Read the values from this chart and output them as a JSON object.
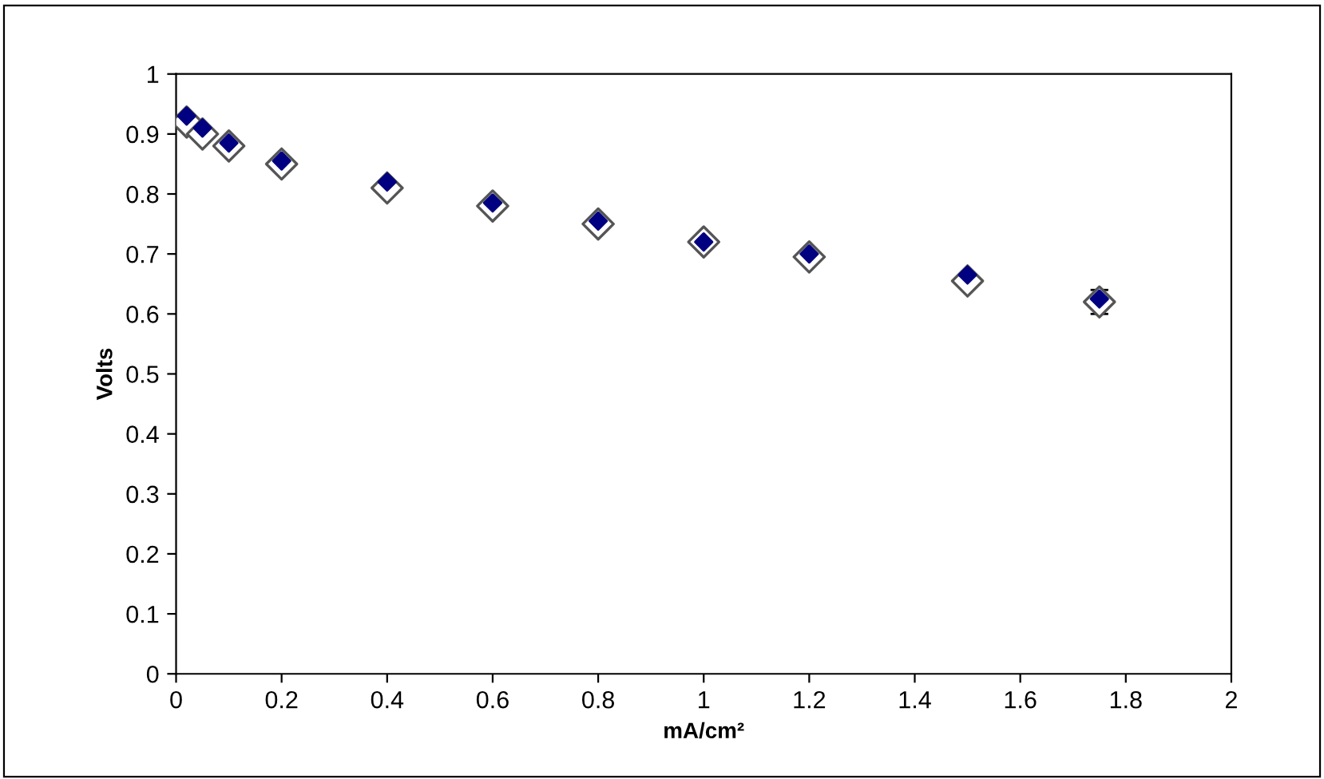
{
  "chart_data": {
    "type": "scatter",
    "xlabel": "mA/cm²",
    "ylabel": "Volts",
    "x": [
      0.02,
      0.05,
      0.1,
      0.2,
      0.4,
      0.6,
      0.8,
      1.0,
      1.2,
      1.5,
      1.75
    ],
    "series": [
      {
        "color": "#ffffff",
        "marker": "diamond",
        "values": [
          0.92,
          0.9,
          0.88,
          0.85,
          0.81,
          0.78,
          0.75,
          0.72,
          0.695,
          0.655,
          0.62
        ],
        "errors": [
          null,
          null,
          null,
          null,
          null,
          null,
          null,
          null,
          null,
          null,
          0.02
        ]
      },
      {
        "color": "#000080",
        "marker": "diamond",
        "values": [
          0.93,
          0.91,
          0.885,
          0.855,
          0.82,
          0.785,
          0.755,
          0.72,
          0.7,
          0.665,
          0.625
        ]
      }
    ],
    "xlim": [
      0,
      2
    ],
    "xticks": [
      0,
      0.2,
      0.4,
      0.6,
      0.8,
      1,
      1.2,
      1.4,
      1.6,
      1.8,
      2
    ],
    "ylim": [
      0,
      1
    ],
    "yticks": [
      0,
      0.1,
      0.2,
      0.3,
      0.4,
      0.5,
      0.6,
      0.7,
      0.8,
      0.9,
      1
    ],
    "grid": false
  }
}
